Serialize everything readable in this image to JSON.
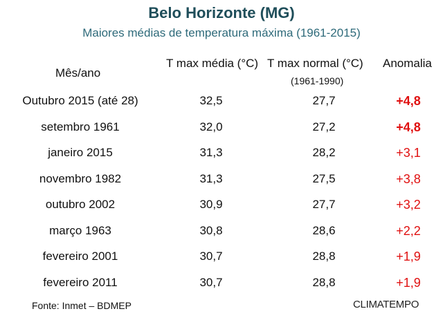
{
  "header": {
    "title": "Belo Horizonte (MG)",
    "subtitle": "Maiores médias de temperatura máxima (1961-2015)"
  },
  "colors": {
    "title": "#1f4e5a",
    "subtitle": "#2e6a7a",
    "anomaly": "#e01010",
    "text": "#111111"
  },
  "table": {
    "columns": {
      "month": "Mês/ano",
      "tmax": "T max média (°C)",
      "normal": "T max  normal (°C)",
      "normal_period": "(1961-1990)",
      "anomaly": "Anomalia"
    },
    "rows": [
      {
        "month": "Outubro 2015 (até 28)",
        "tmax": "32,5",
        "normal": "27,7",
        "anomaly": "+4,8",
        "bold": true
      },
      {
        "month": "setembro 1961",
        "tmax": "32,0",
        "normal": "27,2",
        "anomaly": "+4,8",
        "bold": true
      },
      {
        "month": "janeiro 2015",
        "tmax": "31,3",
        "normal": "28,2",
        "anomaly": "+3,1",
        "bold": false
      },
      {
        "month": "novembro 1982",
        "tmax": "31,3",
        "normal": "27,5",
        "anomaly": "+3,8",
        "bold": false
      },
      {
        "month": "outubro 2002",
        "tmax": "30,9",
        "normal": "27,7",
        "anomaly": "+3,2",
        "bold": false
      },
      {
        "month": "março 1963",
        "tmax": "30,8",
        "normal": "28,6",
        "anomaly": "+2,2",
        "bold": false
      },
      {
        "month": "fevereiro 2001",
        "tmax": "30,7",
        "normal": "28,8",
        "anomaly": "+1,9",
        "bold": false
      },
      {
        "month": "fevereiro 2011",
        "tmax": "30,7",
        "normal": "28,8",
        "anomaly": "+1,9",
        "bold": false
      }
    ]
  },
  "footer": {
    "source": "Fonte: Inmet – BDMEP",
    "logo": "CLIMATEMPO"
  },
  "chart_data": {
    "type": "table",
    "title": "Belo Horizonte (MG)",
    "subtitle": "Maiores médias de temperatura máxima (1961-2015)",
    "columns": [
      "Mês/ano",
      "T max média (°C)",
      "T max  normal (°C) (1961-1990)",
      "Anomalia"
    ],
    "categories": [
      "Outubro 2015 (até 28)",
      "setembro 1961",
      "janeiro 2015",
      "novembro 1982",
      "outubro 2002",
      "março 1963",
      "fevereiro 2001",
      "fevereiro 2011"
    ],
    "series": [
      {
        "name": "T max média (°C)",
        "values": [
          32.5,
          32.0,
          31.3,
          31.3,
          30.9,
          30.8,
          30.7,
          30.7
        ]
      },
      {
        "name": "T max  normal (°C)",
        "values": [
          27.7,
          27.2,
          28.2,
          27.5,
          27.7,
          28.6,
          28.8,
          28.8
        ]
      },
      {
        "name": "Anomalia",
        "values": [
          4.8,
          4.8,
          3.1,
          3.8,
          3.2,
          2.2,
          1.9,
          1.9
        ]
      }
    ]
  }
}
